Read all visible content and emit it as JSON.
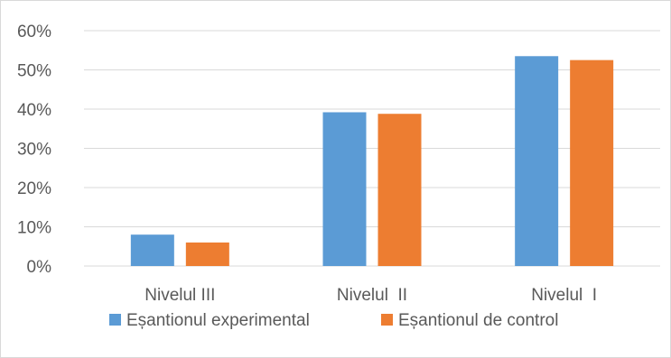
{
  "chart_data": {
    "type": "bar",
    "categories": [
      "Nivelul III",
      "Nivelul  II",
      "Nivelul  I"
    ],
    "series": [
      {
        "name": "Eșantionul experimental",
        "color": "#5b9bd5",
        "values": [
          8,
          39.2,
          53.5
        ]
      },
      {
        "name": "Eșantionul de control",
        "color": "#ed7d31",
        "values": [
          6,
          38.8,
          52.5
        ]
      }
    ],
    "ylim": [
      0,
      60
    ],
    "yticks": [
      0,
      10,
      20,
      30,
      40,
      50,
      60
    ],
    "ytick_labels": [
      "0%",
      "10%",
      "20%",
      "30%",
      "40%",
      "50%",
      "60%"
    ],
    "grid": true,
    "legend": "bottom",
    "gridline_color": "#d9d9d9"
  }
}
